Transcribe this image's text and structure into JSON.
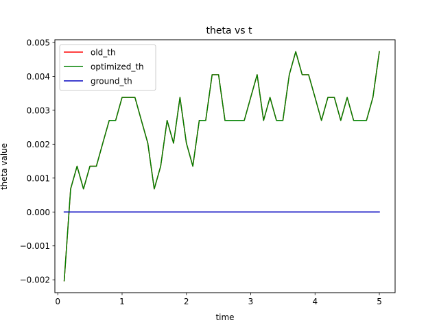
{
  "chart_data": {
    "type": "line",
    "title": "theta vs t",
    "xlabel": "time",
    "ylabel": "theta value",
    "xlim": [
      -0.045,
      5.245
    ],
    "ylim": [
      -0.00238,
      0.00508
    ],
    "xticks": [
      0,
      1,
      2,
      3,
      4,
      5
    ],
    "xtick_labels": [
      "0",
      "1",
      "2",
      "3",
      "4",
      "5"
    ],
    "yticks": [
      -0.002,
      -0.001,
      0.0,
      0.001,
      0.002,
      0.003,
      0.004,
      0.005
    ],
    "ytick_labels": [
      "−0.002",
      "−0.001",
      "0.000",
      "0.001",
      "0.002",
      "0.003",
      "0.004",
      "0.005"
    ],
    "grid": false,
    "legend_position": "top-left",
    "x": [
      0.1,
      0.2,
      0.3,
      0.4,
      0.5,
      0.6,
      0.7,
      0.8,
      0.9,
      1.0,
      1.1,
      1.2,
      1.3,
      1.4,
      1.5,
      1.6,
      1.7,
      1.8,
      1.9,
      2.0,
      2.1,
      2.2,
      2.3,
      2.4,
      2.5,
      2.6,
      2.7,
      2.8,
      2.9,
      3.0,
      3.1,
      3.2,
      3.3,
      3.4,
      3.5,
      3.6,
      3.7,
      3.8,
      3.9,
      4.0,
      4.1,
      4.2,
      4.3,
      4.4,
      4.5,
      4.6,
      4.7,
      4.8,
      4.9,
      5.0
    ],
    "series": [
      {
        "name": "old_th",
        "color": "#ff0000",
        "values": [
          -0.00203,
          0.00068,
          0.00135,
          0.00068,
          0.00135,
          0.00135,
          0.00203,
          0.0027,
          0.0027,
          0.00338,
          0.00338,
          0.00338,
          0.0027,
          0.00203,
          0.00068,
          0.00135,
          0.0027,
          0.00203,
          0.00338,
          0.00203,
          0.00135,
          0.0027,
          0.0027,
          0.00405,
          0.00405,
          0.0027,
          0.0027,
          0.0027,
          0.0027,
          0.00338,
          0.00405,
          0.0027,
          0.00338,
          0.0027,
          0.0027,
          0.00405,
          0.00473,
          0.00405,
          0.00405,
          0.00338,
          0.0027,
          0.00338,
          0.00338,
          0.0027,
          0.00338,
          0.0027,
          0.0027,
          0.0027,
          0.00338,
          0.00473
        ]
      },
      {
        "name": "optimized_th",
        "color": "#008000",
        "values": [
          -0.00203,
          0.00068,
          0.00135,
          0.00068,
          0.00135,
          0.00135,
          0.00203,
          0.0027,
          0.0027,
          0.00338,
          0.00338,
          0.00338,
          0.0027,
          0.00203,
          0.00068,
          0.00135,
          0.0027,
          0.00203,
          0.00338,
          0.00203,
          0.00135,
          0.0027,
          0.0027,
          0.00405,
          0.00405,
          0.0027,
          0.0027,
          0.0027,
          0.0027,
          0.00338,
          0.00405,
          0.0027,
          0.00338,
          0.0027,
          0.0027,
          0.00405,
          0.00473,
          0.00405,
          0.00405,
          0.00338,
          0.0027,
          0.00338,
          0.00338,
          0.0027,
          0.00338,
          0.0027,
          0.0027,
          0.0027,
          0.00338,
          0.00473
        ]
      },
      {
        "name": "ground_th",
        "color": "#0000bf",
        "values": [
          0,
          0,
          0,
          0,
          0,
          0,
          0,
          0,
          0,
          0,
          0,
          0,
          0,
          0,
          0,
          0,
          0,
          0,
          0,
          0,
          0,
          0,
          0,
          0,
          0,
          0,
          0,
          0,
          0,
          0,
          0,
          0,
          0,
          0,
          0,
          0,
          0,
          0,
          0,
          0,
          0,
          0,
          0,
          0,
          0,
          0,
          0,
          0,
          0,
          0
        ]
      }
    ]
  }
}
